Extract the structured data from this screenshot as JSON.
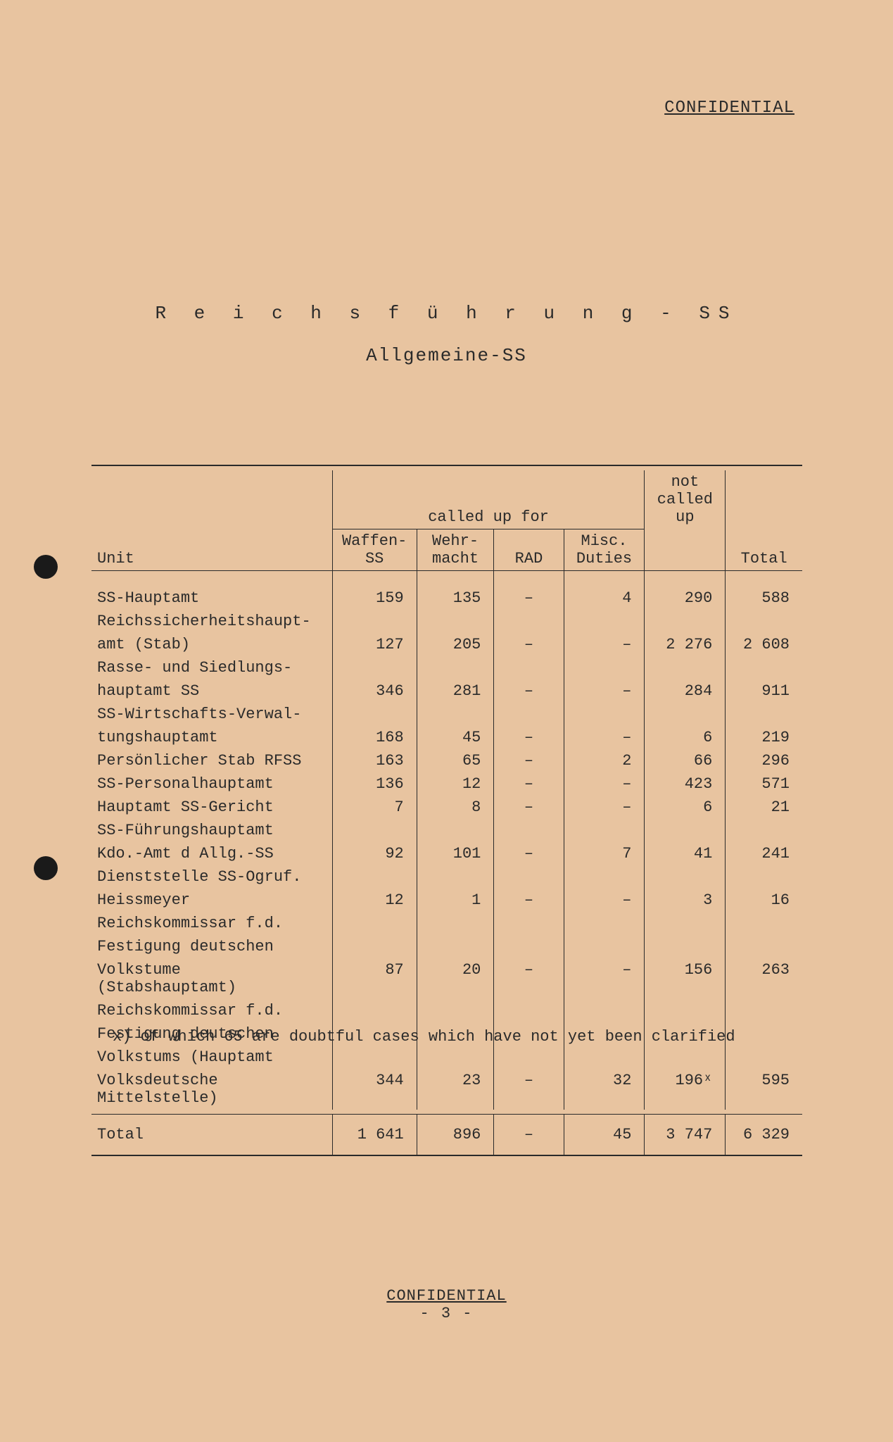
{
  "classification": "CONFIDENTIAL",
  "title": {
    "main": "R e i c h s f ü h r u n g - SS",
    "sub": "Allgemeine-SS"
  },
  "table": {
    "headers": {
      "unit": "Unit",
      "called_up_for": "called up for",
      "waffen_ss": "Waffen-SS",
      "wehrmacht": "Wehr-\nmacht",
      "rad": "RAD",
      "misc_duties": "Misc.\nDuties",
      "not_called_up": "not\ncalled\nup",
      "total": "Total"
    },
    "rows": [
      {
        "unit": "SS-Hauptamt",
        "waffen_ss": "159",
        "wehrmacht": "135",
        "rad": "–",
        "misc": "4",
        "not_called": "290",
        "total": "588"
      },
      {
        "unit": "Reichssicherheitshaupt-\namt (Stab)",
        "waffen_ss": "127",
        "wehrmacht": "205",
        "rad": "–",
        "misc": "–",
        "not_called": "2 276",
        "total": "2 608"
      },
      {
        "unit": "Rasse- und Siedlungs-\nhauptamt SS",
        "waffen_ss": "346",
        "wehrmacht": "281",
        "rad": "–",
        "misc": "–",
        "not_called": "284",
        "total": "911"
      },
      {
        "unit": "SS-Wirtschafts-Verwal-\ntungshauptamt",
        "waffen_ss": "168",
        "wehrmacht": "45",
        "rad": "–",
        "misc": "–",
        "not_called": "6",
        "total": "219"
      },
      {
        "unit": "Persönlicher Stab RFSS",
        "waffen_ss": "163",
        "wehrmacht": "65",
        "rad": "–",
        "misc": "2",
        "not_called": "66",
        "total": "296"
      },
      {
        "unit": "SS-Personalhauptamt",
        "waffen_ss": "136",
        "wehrmacht": "12",
        "rad": "–",
        "misc": "–",
        "not_called": "423",
        "total": "571"
      },
      {
        "unit": "Hauptamt SS-Gericht",
        "waffen_ss": "7",
        "wehrmacht": "8",
        "rad": "–",
        "misc": "–",
        "not_called": "6",
        "total": "21"
      },
      {
        "unit": "SS-Führungshauptamt\nKdo.-Amt d Allg.-SS",
        "waffen_ss": "92",
        "wehrmacht": "101",
        "rad": "–",
        "misc": "7",
        "not_called": "41",
        "total": "241"
      },
      {
        "unit": "Dienststelle SS-Ogruf.\nHeissmeyer",
        "waffen_ss": "12",
        "wehrmacht": "1",
        "rad": "–",
        "misc": "–",
        "not_called": "3",
        "total": "16"
      },
      {
        "unit": "Reichskommissar f.d.\nFestigung deutschen\nVolkstume (Stabshauptamt)",
        "waffen_ss": "87",
        "wehrmacht": "20",
        "rad": "–",
        "misc": "–",
        "not_called": "156",
        "total": "263"
      },
      {
        "unit": "Reichskommissar f.d.\nFestigung deutschen\nVolkstums (Hauptamt\nVolksdeutsche Mittelstelle)",
        "waffen_ss": "344",
        "wehrmacht": "23",
        "rad": "–",
        "misc": "32",
        "not_called": "196ˣ",
        "total": "595"
      }
    ],
    "total_row": {
      "label": "Total",
      "waffen_ss": "1 641",
      "wehrmacht": "896",
      "rad": "–",
      "misc": "45",
      "not_called": "3 747",
      "total": "6 329"
    }
  },
  "footnote": "x) of which 65 are doubtful cases which have not yet been clarified",
  "footer": {
    "classification": "CONFIDENTIAL",
    "page": "- 3 -"
  },
  "colors": {
    "background": "#e8c4a0",
    "text": "#2a2a2a",
    "rule": "#2a2a2a"
  }
}
